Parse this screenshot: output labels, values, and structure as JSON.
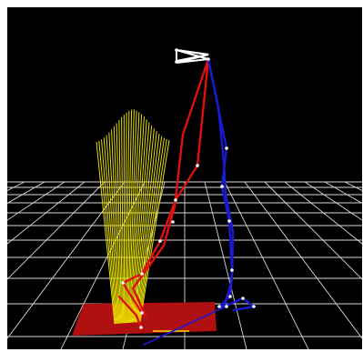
{
  "scene": {
    "background_color": "#000000",
    "grid_color": "#d8d8d8",
    "force_plate_color": "#b01010",
    "force_vector_color": "#e8e000",
    "right_leg_color": "#e01010",
    "left_leg_color": "#1010c8",
    "pelvis_color": "#ffffff",
    "marker_color": "#ffffff"
  }
}
